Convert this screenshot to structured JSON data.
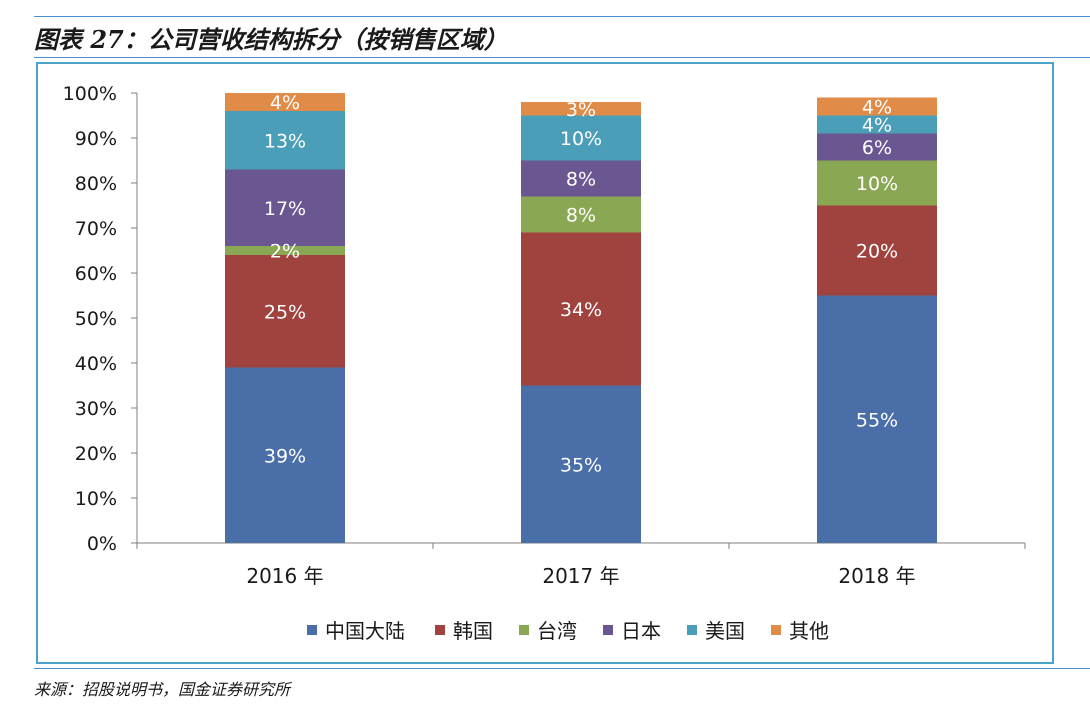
{
  "header": {
    "title": "图表 27：公司营收结构拆分（按销售区域）"
  },
  "footer": {
    "source": "来源：招股说明书，国金证券研究所"
  },
  "chart_data": {
    "type": "bar",
    "stacked": true,
    "categories": [
      "2016 年",
      "2017 年",
      "2018 年"
    ],
    "y_tick_labels": [
      "0%",
      "10%",
      "20%",
      "30%",
      "40%",
      "50%",
      "60%",
      "70%",
      "80%",
      "90%",
      "100%"
    ],
    "ylim": [
      0,
      100
    ],
    "legend_position": "bottom",
    "series": [
      {
        "name": "中国大陆",
        "color": "#4a6ea8",
        "values": [
          39,
          35,
          55
        ],
        "labels": [
          "39%",
          "35%",
          "55%"
        ]
      },
      {
        "name": "韩国",
        "color": "#a0433f",
        "values": [
          25,
          34,
          20
        ],
        "labels": [
          "25%",
          "34%",
          "20%"
        ]
      },
      {
        "name": "台湾",
        "color": "#8aa753",
        "values": [
          2,
          8,
          10
        ],
        "labels": [
          "2%",
          "8%",
          "10%"
        ]
      },
      {
        "name": "日本",
        "color": "#6a5690",
        "values": [
          17,
          8,
          6
        ],
        "labels": [
          "17%",
          "8%",
          "6%"
        ]
      },
      {
        "name": "美国",
        "color": "#4b9eb8",
        "values": [
          13,
          10,
          4
        ],
        "labels": [
          "13%",
          "10%",
          "4%"
        ]
      },
      {
        "name": "其他",
        "color": "#e08c48",
        "values": [
          4,
          3,
          4
        ],
        "labels": [
          "4%",
          "3%",
          "4%"
        ]
      }
    ]
  }
}
